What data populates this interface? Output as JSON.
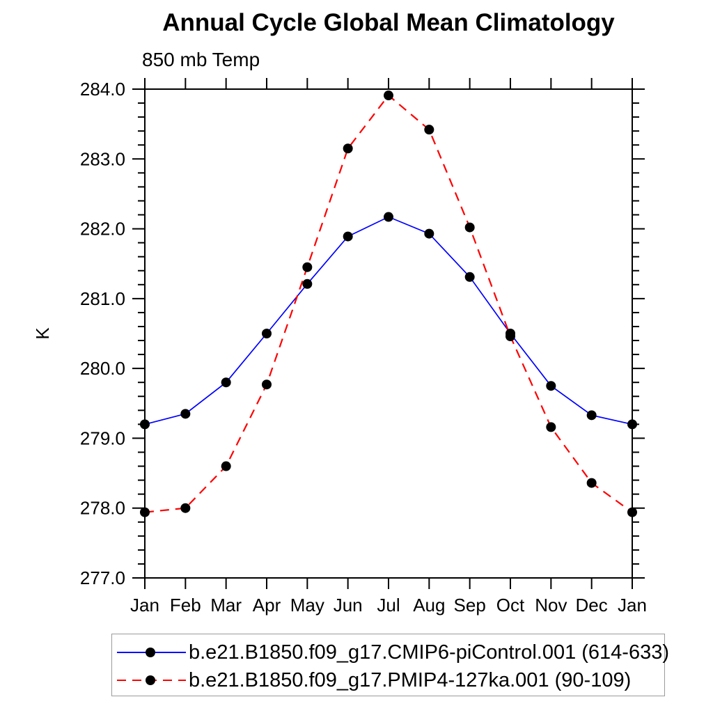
{
  "page": {
    "background_color": "#ffffff",
    "axis_color": "#000000",
    "legend_border_color": "#9a9a9a"
  },
  "chart_data": {
    "type": "line",
    "title": "Annual Cycle Global Mean Climatology",
    "subtitle": "850 mb Temp",
    "xlabel": "",
    "ylabel": "K",
    "x_categories": [
      "Jan",
      "Feb",
      "Mar",
      "Apr",
      "May",
      "Jun",
      "Jul",
      "Aug",
      "Sep",
      "Oct",
      "Nov",
      "Dec",
      "Jan"
    ],
    "ylim": [
      277.0,
      284.0
    ],
    "ytick_major_interval": 1.0,
    "ytick_minor_interval": 0.2,
    "ytick_labels": [
      "277.0",
      "278.0",
      "279.0",
      "280.0",
      "281.0",
      "282.0",
      "283.0",
      "284.0"
    ],
    "grid": false,
    "legend_position": "bottom",
    "marker": "filled-circle",
    "marker_color": "#000000",
    "series": [
      {
        "name": "b.e21.B1850.f09_g17.CMIP6-piControl.001 (614-633)",
        "color": "#0000ff",
        "line_style": "solid",
        "values": [
          279.2,
          279.35,
          279.8,
          280.5,
          281.21,
          281.89,
          282.17,
          281.93,
          281.31,
          280.5,
          279.75,
          279.33,
          279.2
        ]
      },
      {
        "name": "b.e21.B1850.f09_g17.PMIP4-127ka.001 (90-109)",
        "color": "#ff0000",
        "line_style": "dashed",
        "values": [
          277.94,
          278.0,
          278.6,
          279.77,
          281.45,
          283.15,
          283.91,
          283.42,
          282.02,
          280.46,
          279.16,
          278.36,
          277.94
        ]
      }
    ]
  }
}
